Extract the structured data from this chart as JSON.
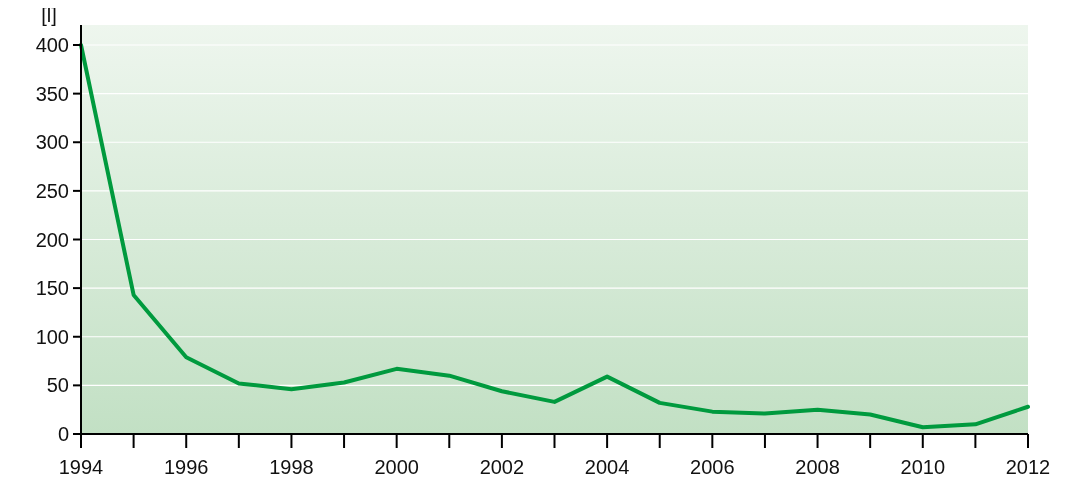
{
  "chart_data": {
    "type": "line",
    "ylabel": "[l]",
    "x": [
      1994,
      1995,
      1996,
      1997,
      1998,
      1999,
      2000,
      2001,
      2002,
      2003,
      2004,
      2005,
      2006,
      2007,
      2008,
      2009,
      2010,
      2011,
      2012
    ],
    "series": [
      {
        "color": "#009a3e",
        "values": [
          400,
          143,
          79,
          52,
          46,
          53,
          67,
          60,
          44,
          33,
          59,
          32,
          23,
          21,
          25,
          20,
          7,
          10,
          28
        ]
      }
    ],
    "xlim": [
      1994,
      2012
    ],
    "xticks": [
      1994,
      {
        "value": 1995,
        "label": null
      },
      1996,
      {
        "value": 1997,
        "label": null
      },
      1998,
      {
        "value": 1999,
        "label": null
      },
      2000,
      {
        "value": 2001,
        "label": null
      },
      2002,
      {
        "value": 2003,
        "label": null
      },
      2004,
      {
        "value": 2005,
        "label": null
      },
      2006,
      {
        "value": 2007,
        "label": null
      },
      2008,
      {
        "value": 2009,
        "label": null
      },
      2010,
      {
        "value": 2011,
        "label": null
      },
      2012
    ],
    "ylim": [
      0,
      400
    ],
    "yticks": [
      0,
      50,
      100,
      150,
      200,
      250,
      300,
      350,
      400
    ],
    "grid": "y",
    "marker": "none",
    "line_style": "solid"
  }
}
